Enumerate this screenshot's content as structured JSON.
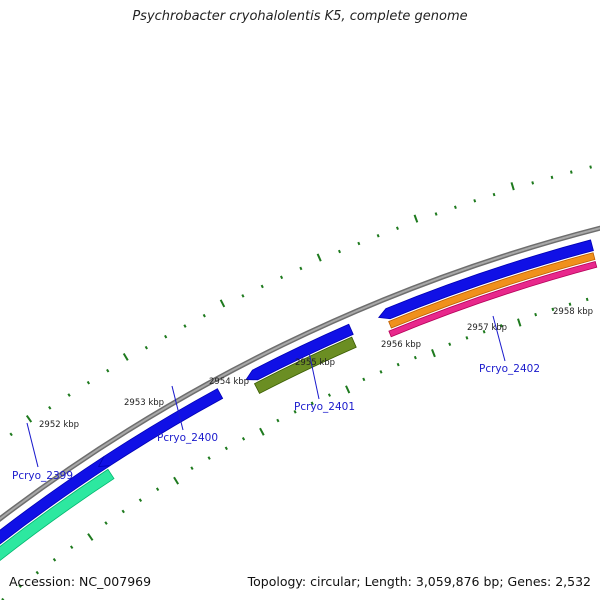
{
  "title": "Psychrobacter cryohalolentis K5, complete genome",
  "footer": {
    "accession": "Accession: NC_007969",
    "summary": "Topology: circular; Length: 3,059,876 bp; Genes: 2,532"
  },
  "colors": {
    "background": "#ffffff",
    "backbone": "#8c8c8c",
    "tick": "#1e7a1e",
    "cds_forward": "#1010e6",
    "rrna_teal": "#2de8a0",
    "olive": "#6b8e23",
    "orange": "#f0901c",
    "pink": "#e8288c",
    "gene_label": "#1a1acc"
  },
  "scale_labels": [
    "2952 kbp",
    "2953 kbp",
    "2954 kbp",
    "2955 kbp",
    "2956 kbp",
    "2957 kbp",
    "2958 kbp"
  ],
  "gene_labels": [
    "Pcryo_2399",
    "Pcryo_2400",
    "Pcryo_2401",
    "Pcryo_2402"
  ]
}
